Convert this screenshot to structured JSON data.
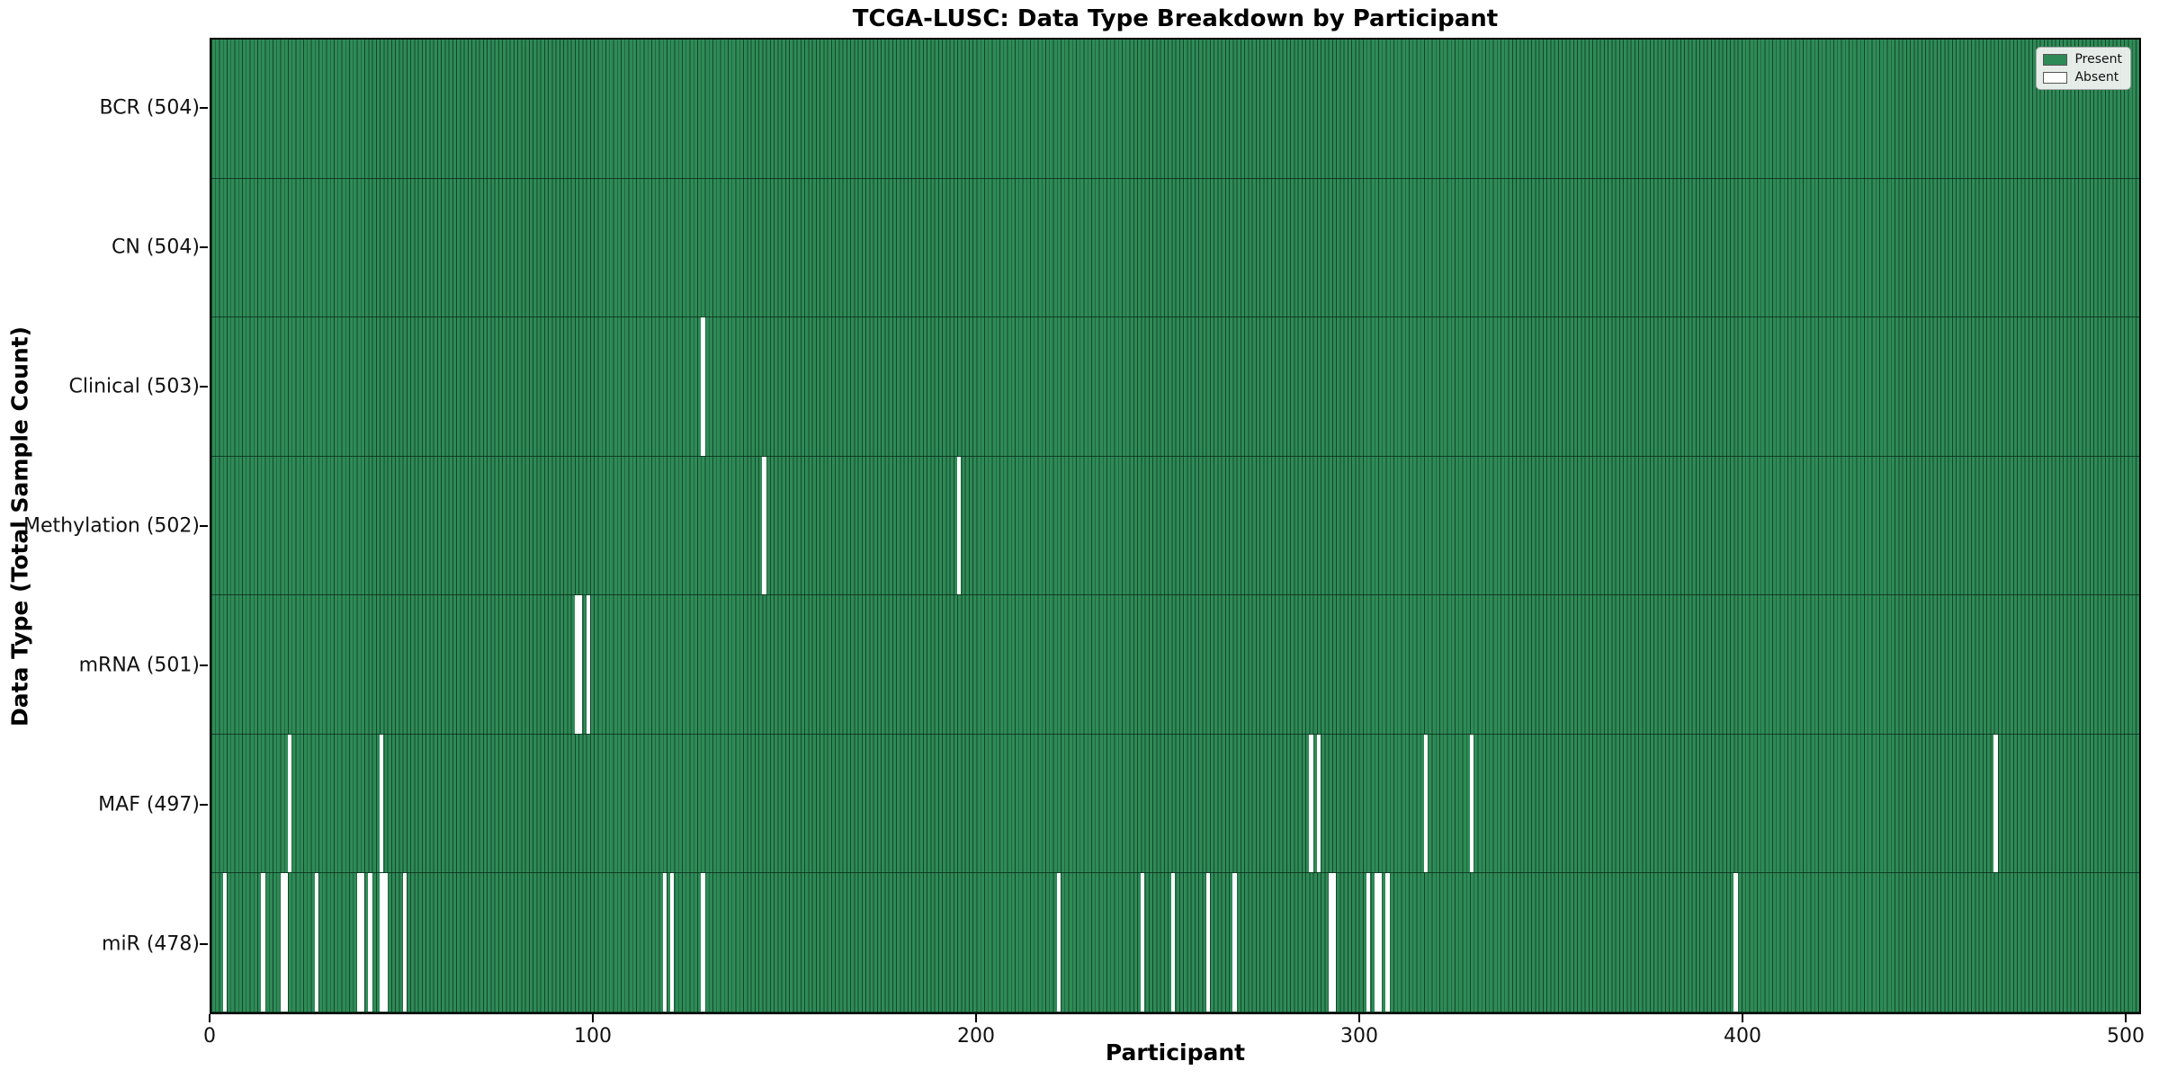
{
  "chart_data": {
    "type": "heatmap",
    "title": "TCGA-LUSC: Data Type Breakdown by Participant",
    "xlabel": "Participant",
    "ylabel": "Data Type (Total Sample Count)",
    "n_participants": 504,
    "x_ticks": [
      0,
      100,
      200,
      300,
      400,
      500
    ],
    "xlim": [
      0,
      504
    ],
    "grid": false,
    "legend_position": "upper right",
    "legend": [
      {
        "label": "Present",
        "color": "#2E8B57"
      },
      {
        "label": "Absent",
        "color": "#ffffff"
      }
    ],
    "colors": {
      "present": "#2E8B57",
      "absent": "#ffffff",
      "bar_edge": "rgba(0,0,0,0.5)",
      "axis": "#000000",
      "legend_bg": "#f6f6f6"
    },
    "rows": [
      {
        "name": "BCR",
        "count": 504,
        "label": "BCR (504)",
        "absent": []
      },
      {
        "name": "CN",
        "count": 504,
        "label": "CN (504)",
        "absent": []
      },
      {
        "name": "Clinical",
        "count": 503,
        "label": "Clinical (503)",
        "absent": [
          128
        ]
      },
      {
        "name": "Methylation",
        "count": 502,
        "label": "Methylation (502)",
        "absent": [
          144,
          195
        ]
      },
      {
        "name": "mRNA",
        "count": 501,
        "label": "mRNA (501)",
        "absent": [
          95,
          96,
          98
        ]
      },
      {
        "name": "MAF",
        "count": 497,
        "label": "MAF (497)",
        "absent": [
          20,
          44,
          287,
          289,
          317,
          329,
          466
        ]
      },
      {
        "name": "miR",
        "count": 478,
        "label": "miR (478)",
        "absent": [
          3,
          13,
          18,
          19,
          27,
          38,
          39,
          41,
          44,
          45,
          50,
          118,
          120,
          128,
          221,
          243,
          251,
          260,
          267,
          292,
          293,
          302,
          304,
          305,
          307,
          398
        ]
      }
    ]
  }
}
